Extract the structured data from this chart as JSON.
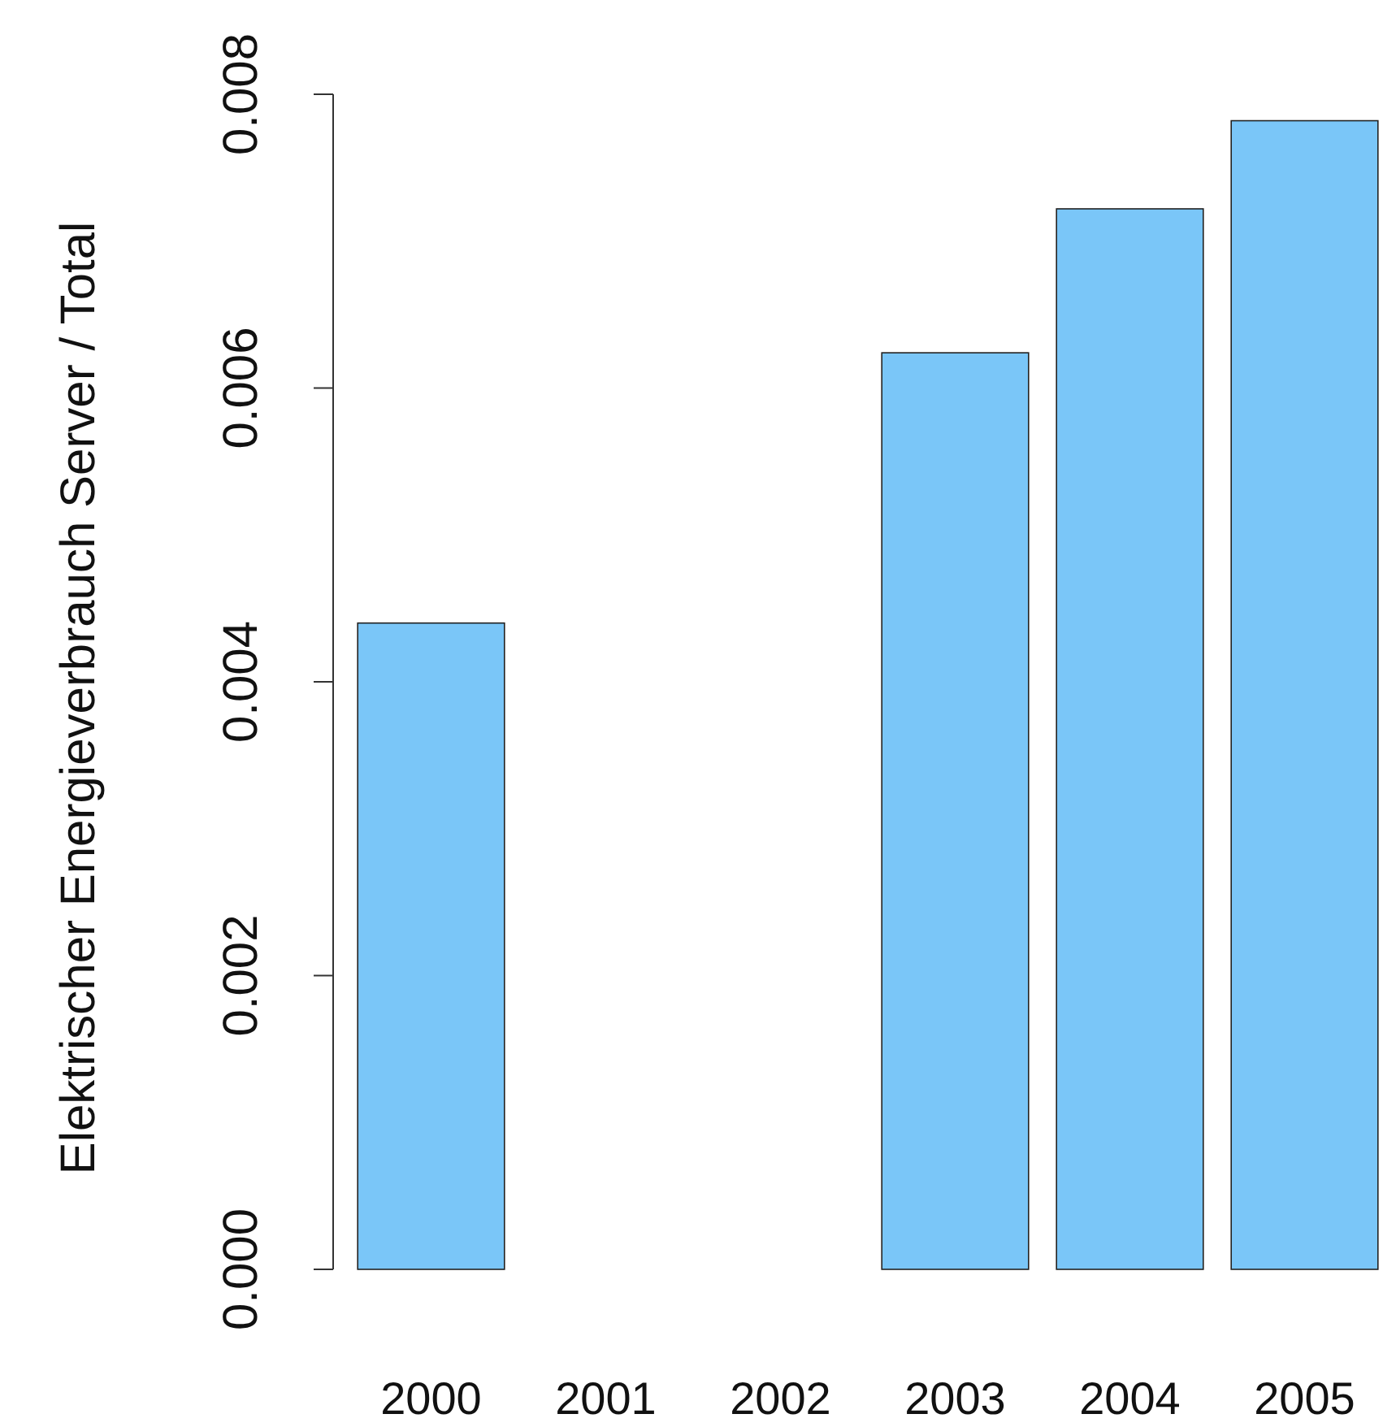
{
  "chart_data": {
    "type": "bar",
    "ylabel": "Elektrischer Energieverbrauch Server / Total",
    "categories": [
      "2000",
      "2001",
      "2002",
      "2003",
      "2004",
      "2005"
    ],
    "values": [
      0.0044,
      0,
      0,
      0.00624,
      0.00722,
      0.00782
    ],
    "color": "#7ac6f8",
    "ylim": [
      0,
      0.008
    ],
    "yticks": [
      {
        "value": 0,
        "label": "0.000"
      },
      {
        "value": 0.002,
        "label": "0.002"
      },
      {
        "value": 0.004,
        "label": "0.004"
      },
      {
        "value": 0.006,
        "label": "0.006"
      },
      {
        "value": 0.008,
        "label": "0.008"
      }
    ],
    "grid": false
  }
}
